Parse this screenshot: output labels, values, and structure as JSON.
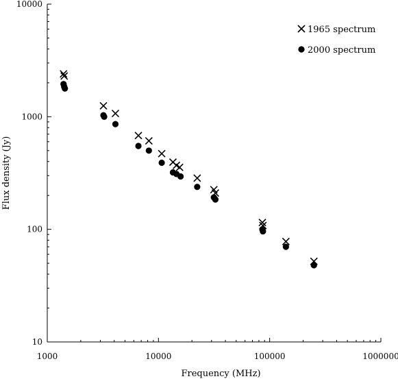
{
  "chart_data": {
    "type": "scatter",
    "title": "",
    "xlabel": "Frequency (MHz)",
    "ylabel": "Flux density (Jy)",
    "x_scale": "log",
    "y_scale": "log",
    "xlim": [
      1000,
      1000000
    ],
    "ylim": [
      10,
      10000
    ],
    "x_ticks": [
      1000,
      10000,
      100000,
      1000000
    ],
    "x_tick_labels": [
      "1000",
      "10000",
      "100000",
      "1000000"
    ],
    "y_ticks": [
      10,
      100,
      1000,
      10000
    ],
    "y_tick_labels": [
      "10",
      "100",
      "1000",
      "10000"
    ],
    "grid": false,
    "legend_position": "top-right",
    "series": [
      {
        "name": "1965 spectrum",
        "marker": "x",
        "color": "#000000",
        "points": [
          {
            "x": 1400,
            "y": 2400
          },
          {
            "x": 1420,
            "y": 2300
          },
          {
            "x": 3200,
            "y": 1250
          },
          {
            "x": 4100,
            "y": 1070
          },
          {
            "x": 6600,
            "y": 680
          },
          {
            "x": 8200,
            "y": 610
          },
          {
            "x": 10700,
            "y": 470
          },
          {
            "x": 13500,
            "y": 395
          },
          {
            "x": 14500,
            "y": 370
          },
          {
            "x": 15500,
            "y": 355
          },
          {
            "x": 22300,
            "y": 285
          },
          {
            "x": 31500,
            "y": 225
          },
          {
            "x": 32500,
            "y": 210
          },
          {
            "x": 86000,
            "y": 115
          },
          {
            "x": 87000,
            "y": 108
          },
          {
            "x": 140000,
            "y": 78
          },
          {
            "x": 250000,
            "y": 52
          }
        ]
      },
      {
        "name": "2000 spectrum",
        "marker": "circle",
        "color": "#000000",
        "points": [
          {
            "x": 1400,
            "y": 1950
          },
          {
            "x": 1420,
            "y": 1850
          },
          {
            "x": 1440,
            "y": 1780
          },
          {
            "x": 3200,
            "y": 1030
          },
          {
            "x": 3250,
            "y": 1000
          },
          {
            "x": 4100,
            "y": 860
          },
          {
            "x": 6600,
            "y": 550
          },
          {
            "x": 8200,
            "y": 500
          },
          {
            "x": 10700,
            "y": 390
          },
          {
            "x": 13500,
            "y": 320
          },
          {
            "x": 14500,
            "y": 310
          },
          {
            "x": 15800,
            "y": 295
          },
          {
            "x": 22300,
            "y": 238
          },
          {
            "x": 31500,
            "y": 192
          },
          {
            "x": 32500,
            "y": 184
          },
          {
            "x": 86000,
            "y": 100
          },
          {
            "x": 87000,
            "y": 96
          },
          {
            "x": 140000,
            "y": 70
          },
          {
            "x": 250000,
            "y": 48
          }
        ]
      }
    ]
  }
}
